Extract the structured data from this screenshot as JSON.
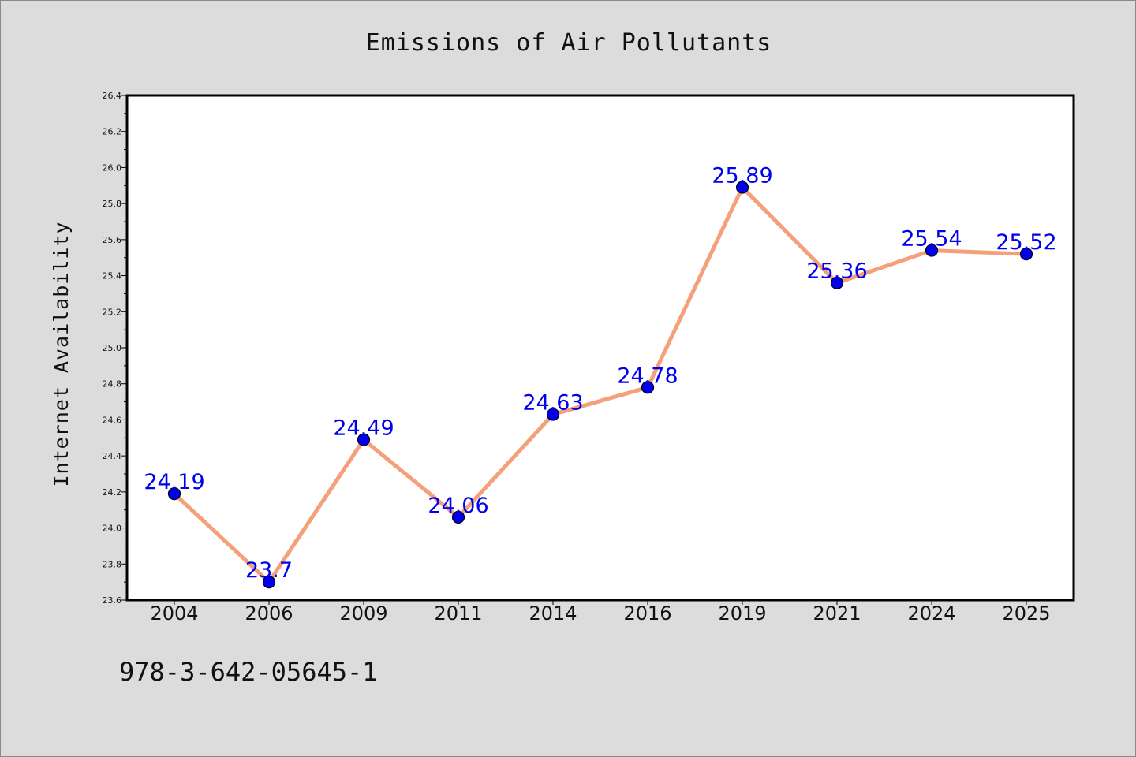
{
  "chart_data": {
    "type": "line",
    "title": "Emissions of Air Pollutants",
    "xlabel": "",
    "ylabel": "Internet Availability",
    "categories": [
      "2004",
      "2006",
      "2009",
      "2011",
      "2014",
      "2016",
      "2019",
      "2021",
      "2024",
      "2025"
    ],
    "series": [
      {
        "values": [
          24.19,
          23.7,
          24.49,
          24.06,
          24.63,
          24.78,
          25.89,
          25.36,
          25.54,
          25.52
        ]
      }
    ],
    "data_labels": [
      "24.19",
      "23.7",
      "24.49",
      "24.06",
      "24.63",
      "24.78",
      "25.89",
      "25.36",
      "25.54",
      "25.52"
    ],
    "ylim": [
      23.6,
      26.4
    ],
    "yticks": [
      23.6,
      23.8,
      24.0,
      24.2,
      24.4,
      24.6,
      24.8,
      25.0,
      25.2,
      25.4,
      25.6,
      25.8,
      26.0,
      26.2,
      26.4
    ],
    "ytick_labels": [
      "23.6",
      "23.8",
      "24.0",
      "24.2",
      "24.4",
      "24.6",
      "24.8",
      "25.0",
      "25.2",
      "25.4",
      "25.6",
      "25.8",
      "26.0",
      "26.2",
      "26.4"
    ],
    "grid": false,
    "colors": {
      "line": "#f4a07a",
      "marker": "#0000ee",
      "data_label": "#0000ee",
      "plot_background": "#ffffff",
      "figure_background": "#dcdcdc"
    }
  },
  "footer_text": "978-3-642-05645-1"
}
